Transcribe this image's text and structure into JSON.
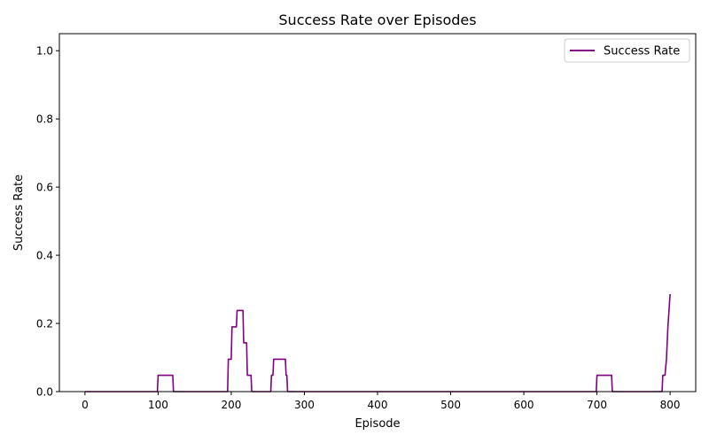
{
  "chart_data": {
    "type": "line",
    "title": "Success Rate over Episodes",
    "xlabel": "Episode",
    "ylabel": "Success Rate",
    "xlim": [
      -35,
      835
    ],
    "ylim": [
      0,
      1.05
    ],
    "xticks": [
      0,
      100,
      200,
      300,
      400,
      500,
      600,
      700,
      800
    ],
    "yticks": [
      0.0,
      0.2,
      0.4,
      0.6,
      0.8,
      1.0
    ],
    "xtick_labels": [
      "0",
      "100",
      "200",
      "300",
      "400",
      "500",
      "600",
      "700",
      "800"
    ],
    "ytick_labels": [
      "0.0",
      "0.2",
      "0.4",
      "0.6",
      "0.8",
      "1.0"
    ],
    "grid": false,
    "legend_position": "top-right",
    "series": [
      {
        "name": "Success Rate",
        "color": "#800080",
        "points": [
          [
            0,
            0.0
          ],
          [
            99,
            0.0
          ],
          [
            100,
            0.048
          ],
          [
            120,
            0.048
          ],
          [
            121,
            0.0
          ],
          [
            195,
            0.0
          ],
          [
            196,
            0.095
          ],
          [
            200,
            0.095
          ],
          [
            201,
            0.19
          ],
          [
            207,
            0.19
          ],
          [
            208,
            0.238
          ],
          [
            216,
            0.238
          ],
          [
            217,
            0.143
          ],
          [
            221,
            0.143
          ],
          [
            222,
            0.048
          ],
          [
            227,
            0.048
          ],
          [
            228,
            0.0
          ],
          [
            254,
            0.0
          ],
          [
            255,
            0.048
          ],
          [
            257,
            0.048
          ],
          [
            258,
            0.095
          ],
          [
            274,
            0.095
          ],
          [
            275,
            0.048
          ],
          [
            276,
            0.048
          ],
          [
            277,
            0.0
          ],
          [
            699,
            0.0
          ],
          [
            700,
            0.048
          ],
          [
            720,
            0.048
          ],
          [
            721,
            0.0
          ],
          [
            789,
            0.0
          ],
          [
            790,
            0.048
          ],
          [
            793,
            0.048
          ],
          [
            795,
            0.095
          ],
          [
            797,
            0.19
          ],
          [
            800,
            0.286
          ]
        ]
      }
    ]
  }
}
